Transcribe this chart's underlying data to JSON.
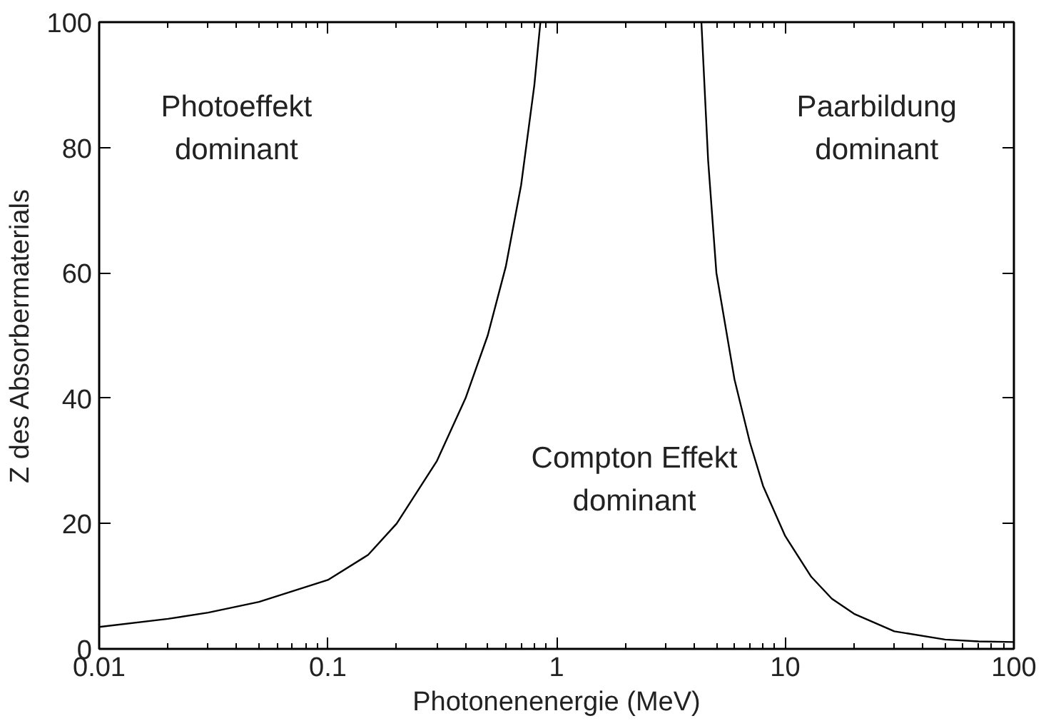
{
  "chart_data": {
    "type": "line",
    "xlabel": "Photonenenergie (MeV)",
    "ylabel": "Z des Absorbermaterials",
    "log": "x",
    "xlim": [
      0.01,
      100
    ],
    "xticks": [
      0.01,
      0.1,
      1,
      10,
      100
    ],
    "ylim": [
      0,
      100
    ],
    "yticks": [
      0,
      20,
      40,
      60,
      80,
      100
    ],
    "grid": false,
    "series": [
      {
        "color": "#000000",
        "x": [
          0.01,
          0.02,
          0.03,
          0.05,
          0.1,
          0.15,
          0.2,
          0.3,
          0.4,
          0.5,
          0.6,
          0.7,
          0.8,
          0.85
        ],
        "values": [
          3.5,
          4.8,
          5.8,
          7.5,
          11,
          15,
          20,
          30,
          40,
          50,
          61,
          74,
          90,
          100
        ]
      },
      {
        "color": "#000000",
        "x": [
          4.3,
          4.6,
          5,
          6,
          7,
          8,
          10,
          13,
          16,
          20,
          30,
          50,
          70,
          100
        ],
        "values": [
          100,
          78,
          60,
          43,
          33,
          26,
          18,
          11.5,
          8,
          5.6,
          2.8,
          1.5,
          1.2,
          1.1
        ]
      }
    ],
    "annotations": [
      "Photoeffekt\ndominant",
      "Paarbildung\ndominant",
      "Compton Effekt\ndominant"
    ]
  }
}
